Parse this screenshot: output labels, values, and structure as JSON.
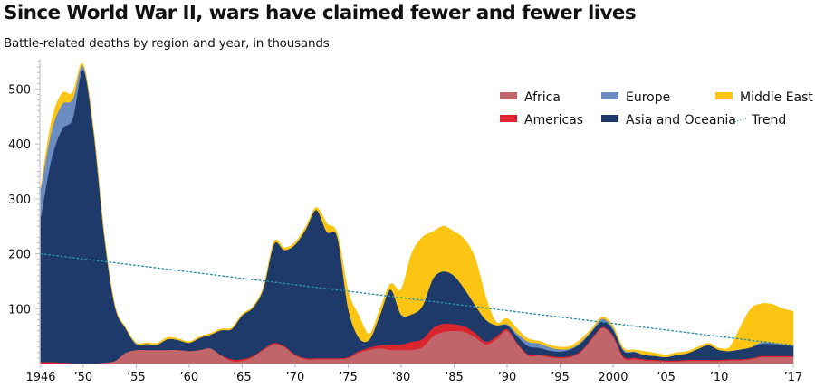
{
  "chart_data": {
    "type": "area",
    "stacked": true,
    "title": "Since World War II, wars have claimed fewer and fewer lives",
    "subtitle": "Battle-related deaths by region and year, in thousands",
    "xlabel": "",
    "ylabel": "",
    "xlim": [
      1946,
      2017
    ],
    "ylim": [
      0,
      555
    ],
    "grid": false,
    "legend_position": "top-right",
    "y_ticks": [
      100,
      200,
      300,
      400,
      500
    ],
    "y_tick_labels": [
      "100",
      "200",
      "300",
      "400",
      "500"
    ],
    "x_ticks": [
      1946,
      1950,
      1955,
      1960,
      1965,
      1970,
      1975,
      1980,
      1985,
      1990,
      1995,
      2000,
      2005,
      2010,
      2017
    ],
    "x_tick_labels": [
      "1946",
      "’50",
      "’55",
      "’60",
      "’65",
      "’70",
      "’75",
      "’80",
      "’85",
      "’90",
      "’95",
      "2000",
      "’05",
      "’10",
      "’17"
    ],
    "x": [
      1946,
      1947,
      1948,
      1949,
      1950,
      1951,
      1952,
      1953,
      1954,
      1955,
      1956,
      1957,
      1958,
      1959,
      1960,
      1961,
      1962,
      1963,
      1964,
      1965,
      1966,
      1967,
      1968,
      1969,
      1970,
      1971,
      1972,
      1973,
      1974,
      1975,
      1976,
      1977,
      1978,
      1979,
      1980,
      1981,
      1982,
      1983,
      1984,
      1985,
      1986,
      1987,
      1988,
      1989,
      1990,
      1991,
      1992,
      1993,
      1994,
      1995,
      1996,
      1997,
      1998,
      1999,
      2000,
      2001,
      2002,
      2003,
      2004,
      2005,
      2006,
      2007,
      2008,
      2009,
      2010,
      2011,
      2012,
      2013,
      2014,
      2015,
      2016,
      2017
    ],
    "series": [
      {
        "name": "Africa",
        "color": "#c0666a",
        "values": [
          0,
          0,
          0,
          0,
          0,
          0,
          2,
          5,
          20,
          25,
          25,
          25,
          25,
          25,
          23,
          25,
          28,
          15,
          5,
          5,
          12,
          25,
          35,
          30,
          15,
          8,
          8,
          8,
          8,
          10,
          20,
          25,
          28,
          25,
          25,
          25,
          30,
          50,
          58,
          60,
          58,
          48,
          35,
          45,
          60,
          35,
          15,
          15,
          12,
          10,
          12,
          22,
          45,
          65,
          50,
          10,
          8,
          6,
          5,
          4,
          4,
          5,
          5,
          5,
          5,
          6,
          6,
          8,
          12,
          12,
          12,
          12
        ]
      },
      {
        "name": "Americas",
        "color": "#d9262e",
        "values": [
          3,
          3,
          2,
          1,
          0,
          0,
          0,
          0,
          0,
          0,
          0,
          0,
          0,
          0,
          0,
          0,
          0,
          1,
          3,
          3,
          2,
          2,
          3,
          2,
          2,
          2,
          2,
          2,
          2,
          2,
          3,
          4,
          6,
          10,
          10,
          15,
          15,
          15,
          15,
          12,
          10,
          8,
          5,
          5,
          3,
          2,
          2,
          2,
          2,
          2,
          2,
          2,
          2,
          2,
          2,
          3,
          3,
          2,
          2,
          2,
          2,
          2,
          2,
          2,
          2,
          2,
          2,
          2,
          2,
          2,
          2,
          2
        ]
      },
      {
        "name": "Asia and Oceania",
        "color": "#1d3a6b",
        "values": [
          265,
          370,
          425,
          445,
          535,
          420,
          230,
          100,
          45,
          10,
          11,
          10,
          20,
          18,
          15,
          22,
          25,
          45,
          55,
          80,
          88,
          110,
          180,
          175,
          200,
          235,
          270,
          230,
          220,
          90,
          25,
          15,
          55,
          100,
          55,
          50,
          60,
          90,
          95,
          88,
          68,
          50,
          40,
          20,
          7,
          12,
          15,
          12,
          10,
          10,
          12,
          14,
          12,
          10,
          10,
          10,
          10,
          8,
          7,
          6,
          10,
          12,
          20,
          27,
          18,
          15,
          18,
          20,
          22,
          22,
          20,
          18
        ]
      },
      {
        "name": "Europe",
        "color": "#6a8cc0",
        "values": [
          52,
          50,
          45,
          35,
          7,
          3,
          1,
          0,
          0,
          2,
          0,
          0,
          0,
          0,
          0,
          0,
          0,
          0,
          0,
          0,
          0,
          0,
          0,
          0,
          0,
          0,
          0,
          0,
          0,
          0,
          0,
          0,
          0,
          0,
          0,
          0,
          0,
          0,
          0,
          0,
          0,
          0,
          0,
          0,
          2,
          5,
          8,
          8,
          6,
          4,
          2,
          2,
          2,
          5,
          3,
          2,
          1,
          0,
          0,
          0,
          0,
          0,
          0,
          0,
          0,
          0,
          0,
          0,
          3,
          2,
          1,
          1
        ]
      },
      {
        "name": "Middle East",
        "color": "#fdc513",
        "values": [
          0,
          17,
          20,
          12,
          3,
          2,
          1,
          1,
          1,
          1,
          2,
          2,
          3,
          2,
          2,
          2,
          2,
          2,
          2,
          2,
          2,
          2,
          4,
          4,
          4,
          4,
          4,
          15,
          6,
          30,
          40,
          10,
          10,
          10,
          45,
          110,
          125,
          85,
          82,
          80,
          90,
          85,
          40,
          5,
          10,
          8,
          5,
          4,
          4,
          4,
          4,
          5,
          3,
          3,
          3,
          3,
          3,
          6,
          5,
          4,
          4,
          3,
          3,
          3,
          3,
          7,
          40,
          70,
          70,
          70,
          65,
          62
        ]
      }
    ],
    "trend": {
      "name": "Trend",
      "color": "#2a8fa6",
      "style": "dotted",
      "start": {
        "x": 1946,
        "y": 200
      },
      "end": {
        "x": 2017,
        "y": 33
      }
    },
    "legend": [
      {
        "name": "Africa",
        "color": "#c0666a",
        "kind": "swatch"
      },
      {
        "name": "Europe",
        "color": "#6a8cc0",
        "kind": "swatch"
      },
      {
        "name": "Middle East",
        "color": "#fdc513",
        "kind": "swatch"
      },
      {
        "name": "Americas",
        "color": "#d9262e",
        "kind": "swatch"
      },
      {
        "name": "Asia and Oceania",
        "color": "#1d3a6b",
        "kind": "swatch"
      },
      {
        "name": "Trend",
        "color": "#2a8fa6",
        "kind": "line"
      }
    ]
  }
}
